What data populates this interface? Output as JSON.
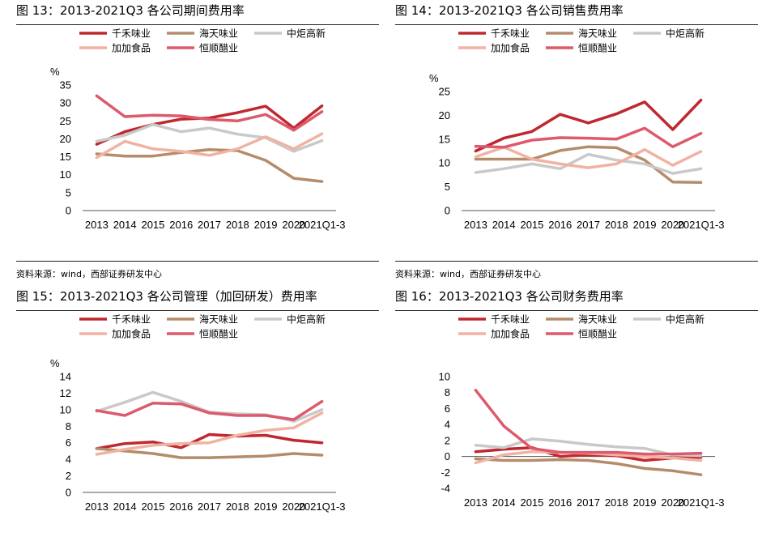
{
  "series_colors": {
    "千禾味业": "#c0282f",
    "海天味业": "#b58c6a",
    "中炬高新": "#c9c9c9",
    "加加食品": "#f0b3a3",
    "恒顺醋业": "#dd5a6d"
  },
  "source_text": "资料来源：wind，西部证券研发中心",
  "panels": [
    {
      "title": "图 13：2013-2021Q3  各公司期间费用率",
      "chart_data": {
        "type": "line",
        "categories": [
          "2013",
          "2014",
          "2015",
          "2016",
          "2017",
          "2018",
          "2019",
          "2020",
          "2021Q1-3"
        ],
        "ylabel": "%",
        "ylim": [
          0,
          35
        ],
        "yticks": [
          0,
          5,
          10,
          15,
          20,
          25,
          30,
          35
        ],
        "legend": "top",
        "series": [
          {
            "name": "千禾味业",
            "values": [
              18.5,
              22,
              24,
              25.5,
              25.8,
              27.3,
              29.1,
              23,
              29.2
            ]
          },
          {
            "name": "海天味业",
            "values": [
              15.8,
              15.2,
              15.2,
              16.2,
              17,
              16.7,
              14,
              9,
              8.1
            ]
          },
          {
            "name": "中炬高新",
            "values": [
              19.3,
              21,
              24,
              22,
              23,
              21.3,
              20.3,
              16.5,
              19.5
            ]
          },
          {
            "name": "加加食品",
            "values": [
              14.8,
              19.3,
              17.2,
              16.5,
              15.4,
              17.2,
              20.6,
              17.2,
              21.4
            ]
          },
          {
            "name": "恒顺醋业",
            "values": [
              32,
              26.2,
              26.6,
              26.4,
              25.4,
              25,
              26.8,
              22.4,
              27.6
            ]
          }
        ]
      }
    },
    {
      "title": "图 14：2013-2021Q3  各公司销售费用率",
      "chart_data": {
        "type": "line",
        "categories": [
          "2013",
          "2014",
          "2015",
          "2016",
          "2017",
          "2018",
          "2019",
          "2020",
          "2021Q1-3"
        ],
        "ylabel": "%",
        "ylim": [
          0,
          25
        ],
        "yticks": [
          0,
          5,
          10,
          15,
          20,
          25
        ],
        "legend": "top",
        "series": [
          {
            "name": "千禾味业",
            "values": [
              12.5,
              15.2,
              16.6,
              20.2,
              18.4,
              20.3,
              22.8,
              17,
              23.2
            ]
          },
          {
            "name": "海天味业",
            "values": [
              10.8,
              10.8,
              10.8,
              12.6,
              13.4,
              13.2,
              10.6,
              6,
              5.9
            ]
          },
          {
            "name": "中炬高新",
            "values": [
              8,
              8.8,
              9.8,
              8.8,
              11.8,
              10.6,
              9.8,
              7.8,
              8.8
            ]
          },
          {
            "name": "加加食品",
            "values": [
              11.3,
              13.3,
              10.8,
              9.8,
              9,
              9.8,
              12.8,
              9.5,
              12.4
            ]
          },
          {
            "name": "恒顺醋业",
            "values": [
              13.5,
              13.3,
              14.8,
              15.3,
              15.2,
              15,
              17.3,
              13.4,
              16.2
            ]
          }
        ]
      }
    },
    {
      "title": "图 15：2013-2021Q3  各公司管理（加回研发）费用率",
      "chart_data": {
        "type": "line",
        "categories": [
          "2013",
          "2014",
          "2015",
          "2016",
          "2017",
          "2018",
          "2019",
          "2020",
          "2021Q1-3"
        ],
        "ylabel": "%",
        "ylim": [
          0,
          14
        ],
        "yticks": [
          0,
          2,
          4,
          6,
          8,
          10,
          12,
          14
        ],
        "legend": "top",
        "series": [
          {
            "name": "千禾味业",
            "values": [
              5.3,
              5.9,
              6.1,
              5.4,
              7,
              6.8,
              6.9,
              6.3,
              6
            ]
          },
          {
            "name": "海天味业",
            "values": [
              5.3,
              5,
              4.7,
              4.2,
              4.2,
              4.3,
              4.4,
              4.7,
              4.5
            ]
          },
          {
            "name": "中炬高新",
            "values": [
              9.8,
              10.9,
              12.1,
              11,
              9.7,
              9.5,
              9.4,
              8.6,
              10
            ]
          },
          {
            "name": "加加食品",
            "values": [
              4.6,
              5.2,
              5.7,
              5.9,
              6,
              6.9,
              7.5,
              7.8,
              9.6
            ]
          },
          {
            "name": "恒顺醋业",
            "values": [
              9.9,
              9.3,
              10.8,
              10.7,
              9.6,
              9.3,
              9.3,
              8.8,
              11
            ]
          }
        ]
      }
    },
    {
      "title": "图 16：2013-2021Q3  各公司财务费用率",
      "chart_data": {
        "type": "line",
        "categories": [
          "2013",
          "2014",
          "2015",
          "2016",
          "2017",
          "2018",
          "2019",
          "2020",
          "2021Q1-3"
        ],
        "ylabel": "",
        "ylim": [
          -4,
          10
        ],
        "yticks": [
          -4,
          -2,
          0,
          2,
          4,
          6,
          8,
          10
        ],
        "legend": "top",
        "series": [
          {
            "name": "千禾味业",
            "values": [
              0.6,
              0.9,
              1.1,
              0,
              0.2,
              0.1,
              -0.5,
              -0.2,
              -0.1
            ]
          },
          {
            "name": "海天味业",
            "values": [
              -0.3,
              -0.5,
              -0.5,
              -0.4,
              -0.5,
              -0.9,
              -1.5,
              -1.8,
              -2.3
            ]
          },
          {
            "name": "中炬高新",
            "values": [
              1.4,
              1.1,
              2.2,
              1.9,
              1.5,
              1.2,
              1,
              0.2,
              0.1
            ]
          },
          {
            "name": "加加食品",
            "values": [
              -0.8,
              0.2,
              0.6,
              0.5,
              0.4,
              0.2,
              0,
              -0.2,
              -0.5
            ]
          },
          {
            "name": "恒顺醋业",
            "values": [
              8.3,
              3.8,
              1,
              0.5,
              0.5,
              0.5,
              0.3,
              0.3,
              0.4
            ]
          }
        ]
      }
    }
  ]
}
